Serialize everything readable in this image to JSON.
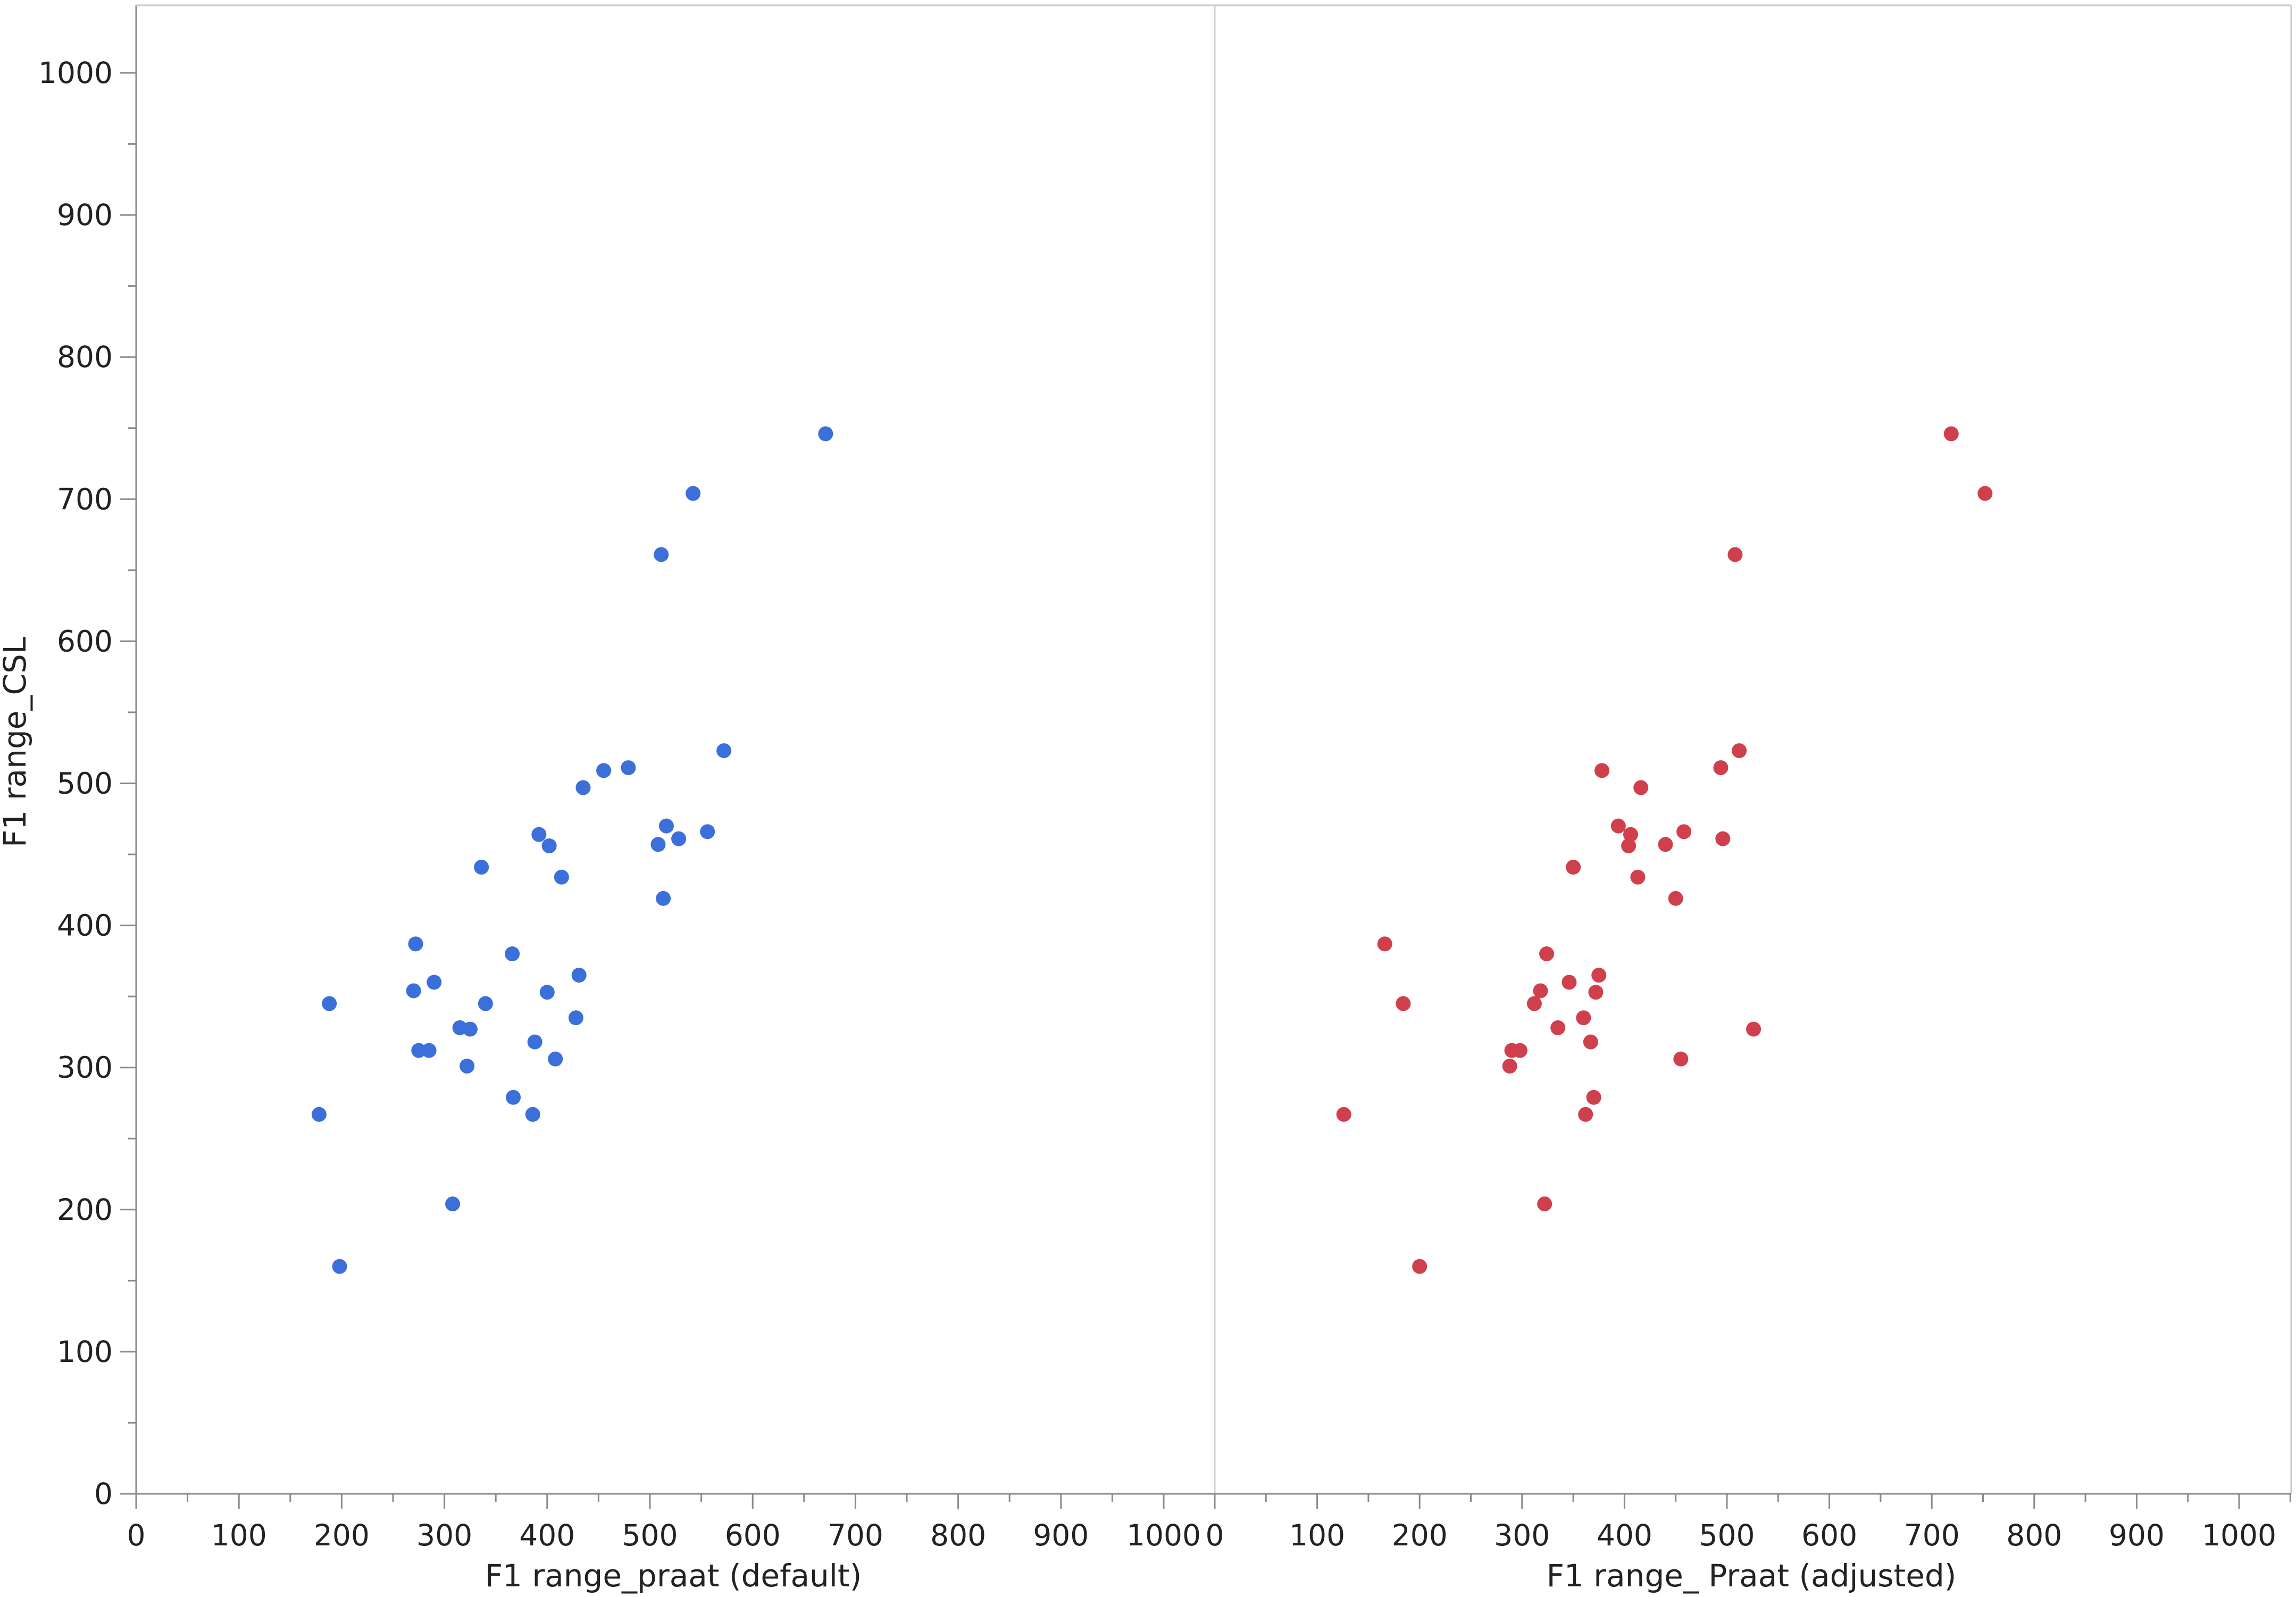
{
  "chart_data": {
    "type": "scatter",
    "ylabel": "F1 range_CSL",
    "ylim": [
      0,
      1000
    ],
    "yticks": [
      "0",
      "100",
      "200",
      "300",
      "400",
      "500",
      "600",
      "700",
      "800",
      "900",
      "1000"
    ],
    "grid": false,
    "panels": [
      {
        "xlabel": "F1 range_praat (default)",
        "xlim": [
          0,
          1050
        ],
        "xticks": [
          "0",
          "100",
          "200",
          "300",
          "400",
          "500",
          "600",
          "700",
          "800",
          "900",
          "1000"
        ],
        "color": "#3b6fd9",
        "points": [
          [
            178,
            267
          ],
          [
            188,
            345
          ],
          [
            198,
            160
          ],
          [
            272,
            387
          ],
          [
            270,
            354
          ],
          [
            275,
            312
          ],
          [
            285,
            312
          ],
          [
            290,
            360
          ],
          [
            308,
            204
          ],
          [
            315,
            328
          ],
          [
            322,
            301
          ],
          [
            325,
            327
          ],
          [
            336,
            441
          ],
          [
            340,
            345
          ],
          [
            366,
            380
          ],
          [
            367,
            279
          ],
          [
            386,
            267
          ],
          [
            388,
            318
          ],
          [
            392,
            464
          ],
          [
            400,
            353
          ],
          [
            402,
            456
          ],
          [
            408,
            306
          ],
          [
            414,
            434
          ],
          [
            428,
            335
          ],
          [
            431,
            365
          ],
          [
            435,
            497
          ],
          [
            455,
            509
          ],
          [
            479,
            511
          ],
          [
            508,
            457
          ],
          [
            511,
            661
          ],
          [
            513,
            419
          ],
          [
            516,
            470
          ],
          [
            528,
            461
          ],
          [
            542,
            704
          ],
          [
            556,
            466
          ],
          [
            572,
            523
          ],
          [
            671,
            746
          ]
        ]
      },
      {
        "xlabel": "F1 range_ Praat (adjusted)",
        "xlim": [
          0,
          1050
        ],
        "xticks": [
          "0",
          "100",
          "200",
          "300",
          "400",
          "500",
          "600",
          "700",
          "800",
          "900",
          "1000"
        ],
        "color": "#d0404c",
        "points": [
          [
            126,
            267
          ],
          [
            166,
            387
          ],
          [
            184,
            345
          ],
          [
            200,
            160
          ],
          [
            288,
            301
          ],
          [
            290,
            312
          ],
          [
            298,
            312
          ],
          [
            312,
            345
          ],
          [
            318,
            354
          ],
          [
            322,
            204
          ],
          [
            324,
            380
          ],
          [
            335,
            328
          ],
          [
            346,
            360
          ],
          [
            350,
            441
          ],
          [
            360,
            335
          ],
          [
            362,
            267
          ],
          [
            367,
            318
          ],
          [
            370,
            279
          ],
          [
            372,
            353
          ],
          [
            375,
            365
          ],
          [
            378,
            509
          ],
          [
            394,
            470
          ],
          [
            404,
            456
          ],
          [
            406,
            464
          ],
          [
            413,
            434
          ],
          [
            416,
            497
          ],
          [
            440,
            457
          ],
          [
            450,
            419
          ],
          [
            455,
            306
          ],
          [
            458,
            466
          ],
          [
            494,
            511
          ],
          [
            496,
            461
          ],
          [
            508,
            661
          ],
          [
            512,
            523
          ],
          [
            526,
            327
          ],
          [
            719,
            746
          ],
          [
            752,
            704
          ]
        ]
      }
    ]
  }
}
